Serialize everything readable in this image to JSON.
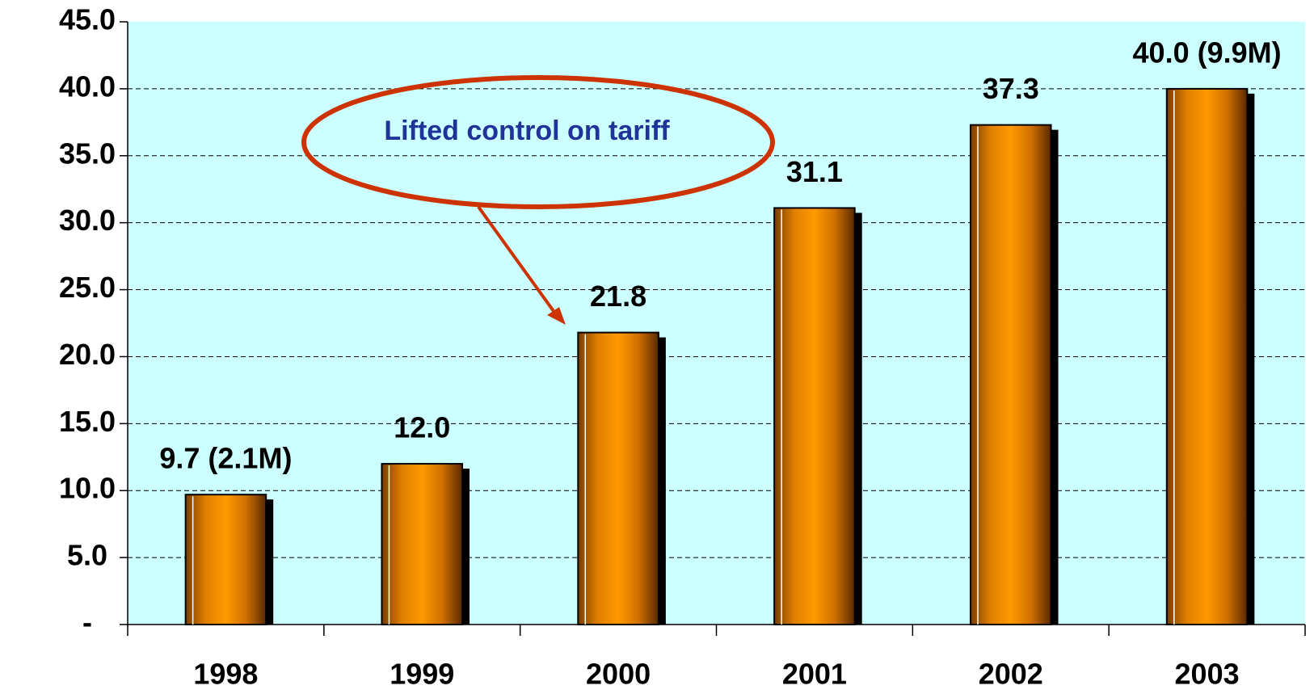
{
  "chart_data": {
    "type": "bar",
    "categories": [
      "1998",
      "1999",
      "2000",
      "2001",
      "2002",
      "2003"
    ],
    "values": [
      9.7,
      12.0,
      21.8,
      31.1,
      37.3,
      40.0
    ],
    "value_labels": [
      "9.7 (2.1M)",
      "12.0",
      "21.8",
      "31.1",
      "37.3",
      "40.0 (9.9M)"
    ],
    "color": "#ff9900",
    "ylim": [
      0,
      45
    ],
    "yticks": [
      {
        "value": 0,
        "label": "-"
      },
      {
        "value": 5,
        "label": "5.0"
      },
      {
        "value": 10,
        "label": "10.0"
      },
      {
        "value": 15,
        "label": "15.0"
      },
      {
        "value": 20,
        "label": "20.0"
      },
      {
        "value": 25,
        "label": "25.0"
      },
      {
        "value": 30,
        "label": "30.0"
      },
      {
        "value": 35,
        "label": "35.0"
      },
      {
        "value": 40,
        "label": "40.0"
      },
      {
        "value": 45,
        "label": "45.0"
      }
    ],
    "grid": true,
    "annotations": [
      "Lifted control on tariff"
    ]
  }
}
